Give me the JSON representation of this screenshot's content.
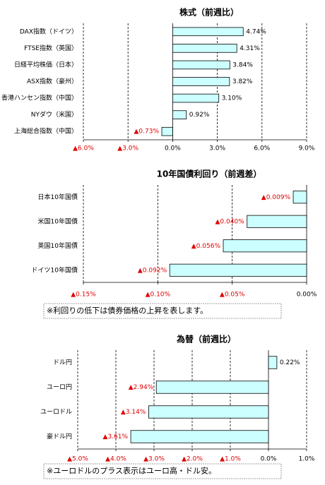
{
  "chart_data": [
    {
      "type": "barh",
      "title": "株式（前週比）",
      "categories": [
        "DAX指数（ドイツ）",
        "FTSE指数（英国）",
        "日経平均株価（日本）",
        "ASX指数（豪州）",
        "香港ハンセン指数（中国）",
        "NYダウ（米国）",
        "上海総合指数（中国）"
      ],
      "values": [
        4.74,
        4.31,
        3.84,
        3.82,
        3.1,
        0.92,
        -0.73
      ],
      "value_labels": [
        "4.74%",
        "4.31%",
        "3.84%",
        "3.82%",
        "3.10%",
        "0.92%",
        "▲0.73%"
      ],
      "color": "#ccffff",
      "xlim": [
        -6,
        9
      ],
      "xticks": [
        {
          "value": -6,
          "label": "▲6.0%"
        },
        {
          "value": -3,
          "label": "▲3.0%"
        },
        {
          "value": 0,
          "label": "0.0%"
        },
        {
          "value": 3,
          "label": "3.0%"
        },
        {
          "value": 6,
          "label": "6.0%"
        },
        {
          "value": 9,
          "label": "9.0%"
        }
      ],
      "grid": true
    },
    {
      "type": "barh",
      "title": "10年国債利回り（前週差）",
      "categories": [
        "日本10年国債",
        "米国10年国債",
        "英国10年国債",
        "ドイツ10年国債"
      ],
      "values": [
        -0.009,
        -0.04,
        -0.056,
        -0.092
      ],
      "value_labels": [
        "▲0.009%",
        "▲0.040%",
        "▲0.056%",
        "▲0.092%"
      ],
      "color": "#ccffff",
      "xlim": [
        -0.15,
        0
      ],
      "xticks": [
        {
          "value": -0.15,
          "label": "▲0.15%"
        },
        {
          "value": -0.1,
          "label": "▲0.10%"
        },
        {
          "value": -0.05,
          "label": "▲0.05%"
        },
        {
          "value": 0,
          "label": "0.00%"
        }
      ],
      "grid": true,
      "note": "※利回りの低下は債券価格の上昇を表します。"
    },
    {
      "type": "barh",
      "title": "為替（前週比）",
      "categories": [
        "ドル円",
        "ユーロ円",
        "ユーロドル",
        "豪ドル円"
      ],
      "values": [
        0.22,
        -2.94,
        -3.14,
        -3.61
      ],
      "value_labels": [
        "0.22%",
        "▲2.94%",
        "▲3.14%",
        "▲3.61%"
      ],
      "color": "#ccffff",
      "xlim": [
        -5,
        1
      ],
      "xticks": [
        {
          "value": -5,
          "label": "▲5.0%"
        },
        {
          "value": -4,
          "label": "▲4.0%"
        },
        {
          "value": -3,
          "label": "▲3.0%"
        },
        {
          "value": -2,
          "label": "▲2.0%"
        },
        {
          "value": -1,
          "label": "▲1.0%"
        },
        {
          "value": 0,
          "label": "0.0%"
        },
        {
          "value": 1,
          "label": "1.0%"
        }
      ],
      "grid": true,
      "note": "※ユーロドルのプラス表示はユーロ高・ドル安。"
    }
  ]
}
